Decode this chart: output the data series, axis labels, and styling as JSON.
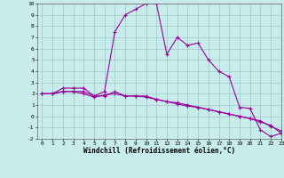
{
  "xlabel": "Windchill (Refroidissement éolien,°C)",
  "background_color": "#c8ecec",
  "line_color": "#990099",
  "x": [
    0,
    1,
    2,
    3,
    4,
    5,
    6,
    7,
    8,
    9,
    10,
    11,
    12,
    13,
    14,
    15,
    16,
    17,
    18,
    19,
    20,
    21,
    22,
    23
  ],
  "line1": [
    2.0,
    2.0,
    2.5,
    2.5,
    2.5,
    1.8,
    2.2,
    7.5,
    9.0,
    9.5,
    10.0,
    10.0,
    5.5,
    7.0,
    6.3,
    6.5,
    5.0,
    4.0,
    3.5,
    0.8,
    0.7,
    -1.2,
    -1.8,
    -1.5
  ],
  "line2": [
    2.0,
    2.0,
    2.2,
    2.2,
    2.2,
    1.8,
    1.8,
    2.2,
    1.8,
    1.8,
    1.8,
    1.5,
    1.3,
    1.2,
    1.0,
    0.8,
    0.6,
    0.4,
    0.2,
    0.0,
    -0.2,
    -0.5,
    -0.8,
    -1.5
  ],
  "line3": [
    2.0,
    2.0,
    2.2,
    2.2,
    2.0,
    1.7,
    1.9,
    2.0,
    1.8,
    1.8,
    1.7,
    1.5,
    1.3,
    1.1,
    0.9,
    0.8,
    0.6,
    0.4,
    0.2,
    0.0,
    -0.2,
    -0.4,
    -0.9,
    -1.3
  ],
  "ylim": [
    -2,
    10
  ],
  "xlim": [
    -0.5,
    23
  ],
  "yticks": [
    -2,
    -1,
    0,
    1,
    2,
    3,
    4,
    5,
    6,
    7,
    8,
    9,
    10
  ],
  "xticks": [
    0,
    1,
    2,
    3,
    4,
    5,
    6,
    7,
    8,
    9,
    10,
    11,
    12,
    13,
    14,
    15,
    16,
    17,
    18,
    19,
    20,
    21,
    22,
    23
  ],
  "marker": "+",
  "marker_size": 3,
  "line_width": 0.8,
  "grid_color": "#9ec8c8",
  "tick_fontsize": 4.5,
  "label_fontsize": 5.5
}
